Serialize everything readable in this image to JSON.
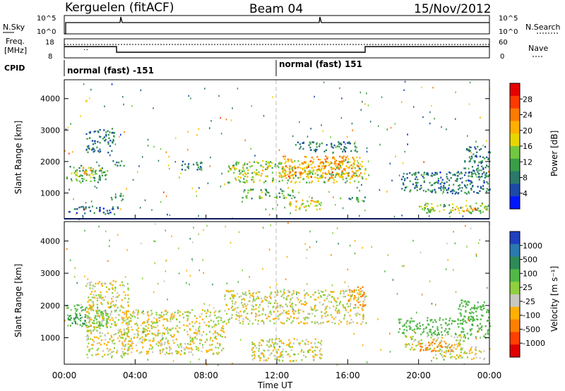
{
  "header": {
    "station": "Kerguelen (fitACF)",
    "beam": "Beam 04",
    "date": "15/Nov/2012"
  },
  "panels": {
    "nsky": {
      "label": "N.Sky",
      "ticks": [
        "10^5",
        "10^0"
      ],
      "right_label": "N.Search",
      "right_ticks": [
        "10^5",
        "10^0"
      ]
    },
    "freq": {
      "label": "Freq.",
      "unit": "[MHz]",
      "ticks": [
        "18",
        "8"
      ],
      "right_label": "Nave",
      "right_ticks": [
        "60",
        "0"
      ]
    },
    "cpid": {
      "label": "CPID",
      "modes": [
        "normal (fast) -151",
        "normal (fast) 151"
      ]
    }
  },
  "x_ticks": [
    "00:00",
    "04:00",
    "08:00",
    "12:00",
    "16:00",
    "20:00",
    "00:00"
  ],
  "x_label": "Time UT",
  "y_label": "Slant Range [km]",
  "y_ticks": [
    "4000",
    "3000",
    "2000",
    "1000"
  ],
  "power_bar": {
    "label": "Power [dB]",
    "ticks": [
      "28",
      "24",
      "20",
      "16",
      "12",
      "8",
      "4"
    ],
    "colors": [
      "#0018ff",
      "#1c4aa8",
      "#2a7a6a",
      "#3a9e48",
      "#72c840",
      "#e7d600",
      "#ffb000",
      "#ff7a00",
      "#ff3a00",
      "#e80000"
    ]
  },
  "velocity_bar": {
    "label": "Velocity [m s⁻¹]",
    "ticks": [
      "1000",
      "500",
      "100",
      "25",
      "-25",
      "-100",
      "-500",
      "-1000"
    ],
    "colors": [
      "#2040c0",
      "#2a7ab0",
      "#2e8b57",
      "#52b848",
      "#8fd040",
      "#c8c8c0",
      "#ffb000",
      "#ff8000",
      "#ff4000",
      "#e00000"
    ]
  },
  "chart_data": [
    {
      "type": "heatmap",
      "title": "Power",
      "xlabel": "Time UT",
      "ylabel": "Slant Range [km]",
      "xlim": [
        0,
        24
      ],
      "ylim": [
        180,
        4600
      ],
      "colorbar": {
        "label": "Power [dB]",
        "range": [
          0,
          32
        ]
      },
      "regions": [
        {
          "t0": 0.1,
          "t1": 2.4,
          "r0": 1350,
          "r1": 1900,
          "value": 12
        },
        {
          "t0": 0.8,
          "t1": 1.6,
          "r0": 1600,
          "r1": 1850,
          "value": 20
        },
        {
          "t0": 1.2,
          "t1": 2.8,
          "r0": 2300,
          "r1": 3100,
          "value": 8
        },
        {
          "t0": 2.7,
          "t1": 3.4,
          "r0": 1850,
          "r1": 2050,
          "value": 8
        },
        {
          "t0": 2.6,
          "t1": 3.3,
          "r0": 780,
          "r1": 1050,
          "value": 12
        },
        {
          "t0": 0.2,
          "t1": 3.0,
          "r0": 350,
          "r1": 600,
          "value": 6
        },
        {
          "t0": 6.5,
          "t1": 7.8,
          "r0": 1750,
          "r1": 2050,
          "value": 8
        },
        {
          "t0": 9.2,
          "t1": 17.0,
          "r0": 1350,
          "r1": 2050,
          "value": 16
        },
        {
          "t0": 12.2,
          "t1": 16.8,
          "r0": 1500,
          "r1": 2200,
          "value": 22
        },
        {
          "t0": 10.0,
          "t1": 13.0,
          "r0": 850,
          "r1": 1150,
          "value": 12
        },
        {
          "t0": 13.0,
          "t1": 16.5,
          "r0": 2300,
          "r1": 2650,
          "value": 8
        },
        {
          "t0": 12.5,
          "t1": 14.5,
          "r0": 450,
          "r1": 800,
          "value": 18
        },
        {
          "t0": 15.5,
          "t1": 17.0,
          "r0": 750,
          "r1": 900,
          "value": 10
        },
        {
          "t0": 19.0,
          "t1": 24.0,
          "r0": 1000,
          "r1": 1700,
          "value": 8
        },
        {
          "t0": 20.0,
          "t1": 24.0,
          "r0": 380,
          "r1": 700,
          "value": 14
        },
        {
          "t0": 21.8,
          "t1": 23.2,
          "r0": 420,
          "r1": 560,
          "value": 24
        },
        {
          "t0": 22.5,
          "t1": 24.0,
          "r0": 1500,
          "r1": 2500,
          "value": 8
        }
      ]
    },
    {
      "type": "heatmap",
      "title": "Velocity",
      "xlabel": "Time UT",
      "ylabel": "Slant Range [km]",
      "xlim": [
        0,
        24
      ],
      "ylim": [
        180,
        4600
      ],
      "colorbar": {
        "label": "Velocity [m s⁻¹]",
        "range": [
          -1000,
          1000
        ]
      },
      "regions": [
        {
          "t0": 0.1,
          "t1": 2.5,
          "r0": 1350,
          "r1": 2050,
          "value": 150
        },
        {
          "t0": 0.2,
          "t1": 1.2,
          "r0": 1450,
          "r1": 1750,
          "value": 600
        },
        {
          "t0": 1.2,
          "t1": 3.6,
          "r0": 400,
          "r1": 2800,
          "value": 0
        },
        {
          "t0": 3.2,
          "t1": 9.0,
          "r0": 500,
          "r1": 1900,
          "value": 0
        },
        {
          "t0": 9.0,
          "t1": 17.0,
          "r0": 1450,
          "r1": 2500,
          "value": 0
        },
        {
          "t0": 10.5,
          "t1": 14.5,
          "r0": 300,
          "r1": 1000,
          "value": 0
        },
        {
          "t0": 16.0,
          "t1": 17.0,
          "r0": 2000,
          "r1": 2600,
          "value": -150
        },
        {
          "t0": 18.8,
          "t1": 22.5,
          "r0": 1100,
          "r1": 1650,
          "value": 300
        },
        {
          "t0": 19.2,
          "t1": 22.6,
          "r0": 650,
          "r1": 1100,
          "value": 0
        },
        {
          "t0": 22.2,
          "t1": 24.0,
          "r0": 1000,
          "r1": 2200,
          "value": 300
        },
        {
          "t0": 20.8,
          "t1": 24.0,
          "r0": 350,
          "r1": 750,
          "value": 0
        },
        {
          "t0": 20.0,
          "t1": 22.0,
          "r0": 600,
          "r1": 900,
          "value": -200
        }
      ]
    }
  ]
}
